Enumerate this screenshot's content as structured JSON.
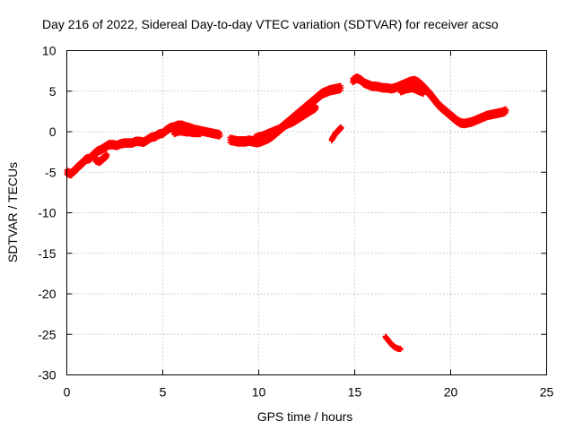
{
  "chart_data": {
    "type": "scatter",
    "title": "Day 216 of 2022, Sidereal Day-to-day VTEC variation (SDTVAR) for receiver acso",
    "xlabel": "GPS time / hours",
    "ylabel": "SDTVAR / TECUs",
    "xlim": [
      0,
      25
    ],
    "ylim": [
      -30,
      10
    ],
    "x_ticks": [
      0,
      5,
      10,
      15,
      20,
      25
    ],
    "y_ticks": [
      -30,
      -25,
      -20,
      -15,
      -10,
      -5,
      0,
      5,
      10
    ],
    "x_tick_labels": [
      "0",
      "5",
      "10",
      "15",
      "20",
      "25"
    ],
    "y_tick_labels": [
      "-30",
      "-25",
      "-20",
      "-15",
      "-10",
      "-5",
      "0",
      "5",
      "10"
    ],
    "grid": true,
    "marker": "+",
    "series": [
      {
        "name": "SDTVAR",
        "color": "#ff0000",
        "segments": [
          {
            "x": [
              0.0,
              0.2,
              0.4,
              0.6,
              0.8,
              1.0,
              1.2,
              1.4,
              1.6,
              1.8,
              2.0,
              2.2,
              2.4,
              2.6,
              2.8,
              3.0,
              3.2,
              3.4,
              3.6,
              3.8,
              4.0,
              4.2,
              4.4,
              4.6,
              4.8,
              5.0,
              5.2,
              5.4,
              5.6,
              5.8,
              6.0,
              6.2,
              6.4,
              6.6,
              6.8,
              7.0,
              7.2,
              7.4,
              7.6,
              7.8,
              8.0
            ],
            "y": [
              -5.0,
              -5.2,
              -4.8,
              -4.3,
              -3.9,
              -3.4,
              -3.3,
              -2.8,
              -2.4,
              -2.2,
              -1.9,
              -1.6,
              -1.6,
              -1.7,
              -1.5,
              -1.4,
              -1.4,
              -1.4,
              -1.2,
              -1.2,
              -1.3,
              -1.0,
              -0.7,
              -0.6,
              -0.3,
              -0.2,
              0.2,
              0.5,
              0.6,
              0.8,
              0.8,
              0.6,
              0.5,
              0.3,
              0.2,
              0.1,
              0.0,
              -0.1,
              -0.2,
              -0.3,
              -0.4
            ],
            "spread": 0.5
          },
          {
            "x": [
              1.5,
              1.7,
              1.9,
              2.1
            ],
            "y": [
              -3.5,
              -3.7,
              -3.3,
              -2.9
            ],
            "spread": 0.4
          },
          {
            "x": [
              5.6,
              5.8,
              6.0,
              6.2,
              6.4,
              6.6,
              6.8,
              7.0
            ],
            "y": [
              -0.2,
              0.0,
              0.0,
              -0.1,
              -0.1,
              -0.2,
              -0.2,
              -0.2
            ],
            "spread": 0.3
          },
          {
            "x": [
              8.5,
              8.7,
              8.9,
              9.1,
              9.3,
              9.5,
              9.7,
              9.9,
              10.1,
              10.3,
              10.5,
              10.7,
              10.9,
              11.1,
              11.3,
              11.5,
              11.7,
              11.9,
              12.1,
              12.3,
              12.5,
              12.7,
              12.9,
              13.1,
              13.3,
              13.5,
              13.7,
              13.9,
              14.1,
              14.3
            ],
            "y": [
              -1.0,
              -1.1,
              -1.2,
              -1.2,
              -1.2,
              -1.1,
              -1.2,
              -1.3,
              -1.2,
              -1.0,
              -0.8,
              -0.5,
              -0.1,
              0.3,
              0.7,
              1.1,
              1.5,
              1.9,
              2.3,
              2.7,
              3.1,
              3.5,
              3.9,
              4.3,
              4.7,
              4.9,
              5.1,
              5.2,
              5.3,
              5.4
            ],
            "spread": 0.6
          },
          {
            "x": [
              9.8,
              10.0,
              10.2,
              10.4,
              10.6,
              10.8,
              11.0,
              11.2,
              11.4,
              11.6,
              11.8,
              12.0,
              12.2,
              12.4,
              12.6,
              12.8,
              13.0
            ],
            "y": [
              -0.8,
              -0.6,
              -0.5,
              -0.3,
              -0.1,
              0.1,
              0.3,
              0.5,
              0.8,
              1.0,
              1.2,
              1.5,
              1.8,
              2.1,
              2.4,
              2.7,
              3.0
            ],
            "spread": 0.4
          },
          {
            "x": [
              13.8,
              13.9,
              14.0,
              14.1,
              14.2,
              14.3
            ],
            "y": [
              -1.0,
              -0.6,
              -0.2,
              0.0,
              0.3,
              0.5
            ],
            "spread": 0.2
          },
          {
            "x": [
              14.9,
              15.1,
              15.3,
              15.5,
              15.7,
              15.9,
              16.1,
              16.3,
              16.5,
              16.7,
              16.9,
              17.1,
              17.3,
              17.5,
              17.7,
              17.9,
              18.1,
              18.3,
              18.5,
              18.7,
              18.9,
              19.1,
              19.3,
              19.5,
              19.7,
              19.9,
              20.1,
              20.3,
              20.5,
              20.7,
              20.9,
              21.1,
              21.3,
              21.5,
              21.7,
              21.9,
              22.1,
              22.3,
              22.5,
              22.7,
              22.9
            ],
            "y": [
              6.3,
              6.6,
              6.4,
              6.0,
              5.8,
              5.6,
              5.6,
              5.5,
              5.4,
              5.4,
              5.3,
              5.4,
              5.6,
              5.8,
              6.0,
              6.2,
              6.3,
              6.1,
              5.7,
              5.2,
              4.7,
              4.1,
              3.5,
              3.0,
              2.6,
              2.2,
              1.8,
              1.4,
              1.1,
              1.0,
              1.1,
              1.2,
              1.4,
              1.6,
              1.8,
              2.0,
              2.1,
              2.2,
              2.3,
              2.4,
              2.6
            ],
            "spread": 0.5
          },
          {
            "x": [
              17.4,
              17.6,
              17.8,
              18.0,
              18.2,
              18.4,
              18.6
            ],
            "y": [
              5.0,
              5.2,
              5.3,
              5.4,
              5.2,
              5.0,
              4.8
            ],
            "spread": 0.4
          },
          {
            "x": [
              16.6,
              16.7,
              16.8,
              16.9,
              17.0,
              17.1,
              17.2,
              17.3,
              17.4
            ],
            "y": [
              -25.3,
              -25.6,
              -25.9,
              -26.2,
              -26.4,
              -26.6,
              -26.7,
              -26.8,
              -26.8
            ],
            "spread": 0.1
          }
        ]
      }
    ]
  }
}
